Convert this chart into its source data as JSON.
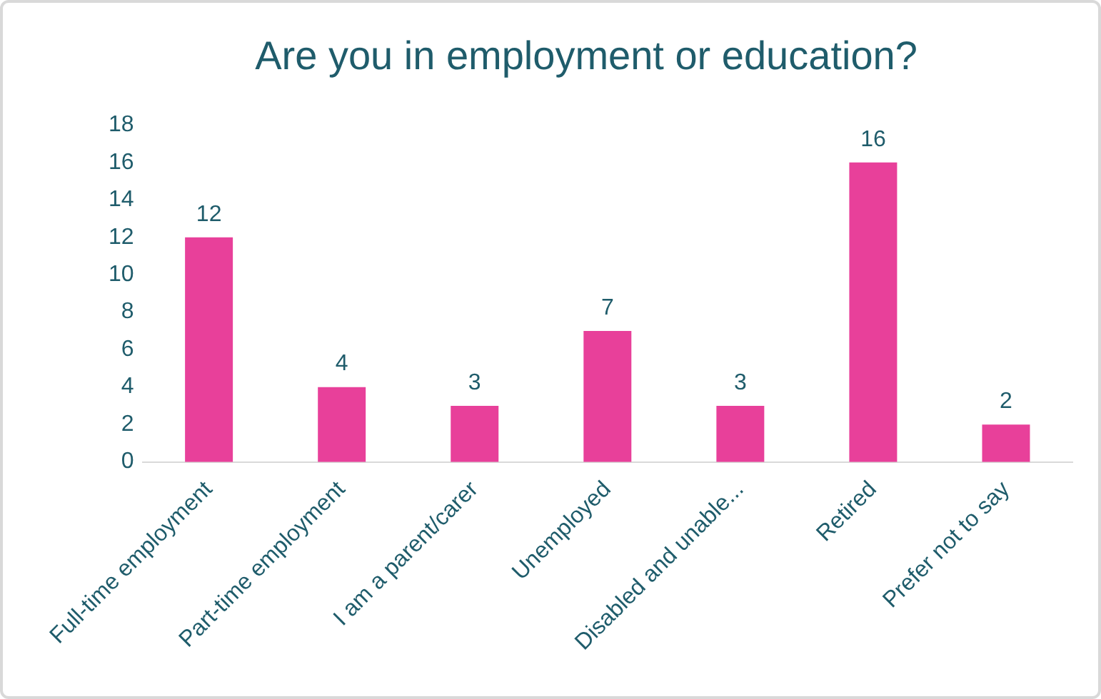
{
  "chart_data": {
    "type": "bar",
    "title": "Are you in employment or education?",
    "categories": [
      "Full-time employment",
      "Part-time employment",
      "I am a parent/carer",
      "Unemployed",
      "Disabled and unable...",
      "Retired",
      "Prefer not to say"
    ],
    "values": [
      12,
      4,
      3,
      7,
      3,
      16,
      2
    ],
    "color": "#e8409a",
    "ylim": [
      0,
      18
    ],
    "yticks": [
      0,
      2,
      4,
      6,
      8,
      10,
      12,
      14,
      16,
      18
    ],
    "grid": false,
    "legend": false,
    "data_labels": true
  }
}
